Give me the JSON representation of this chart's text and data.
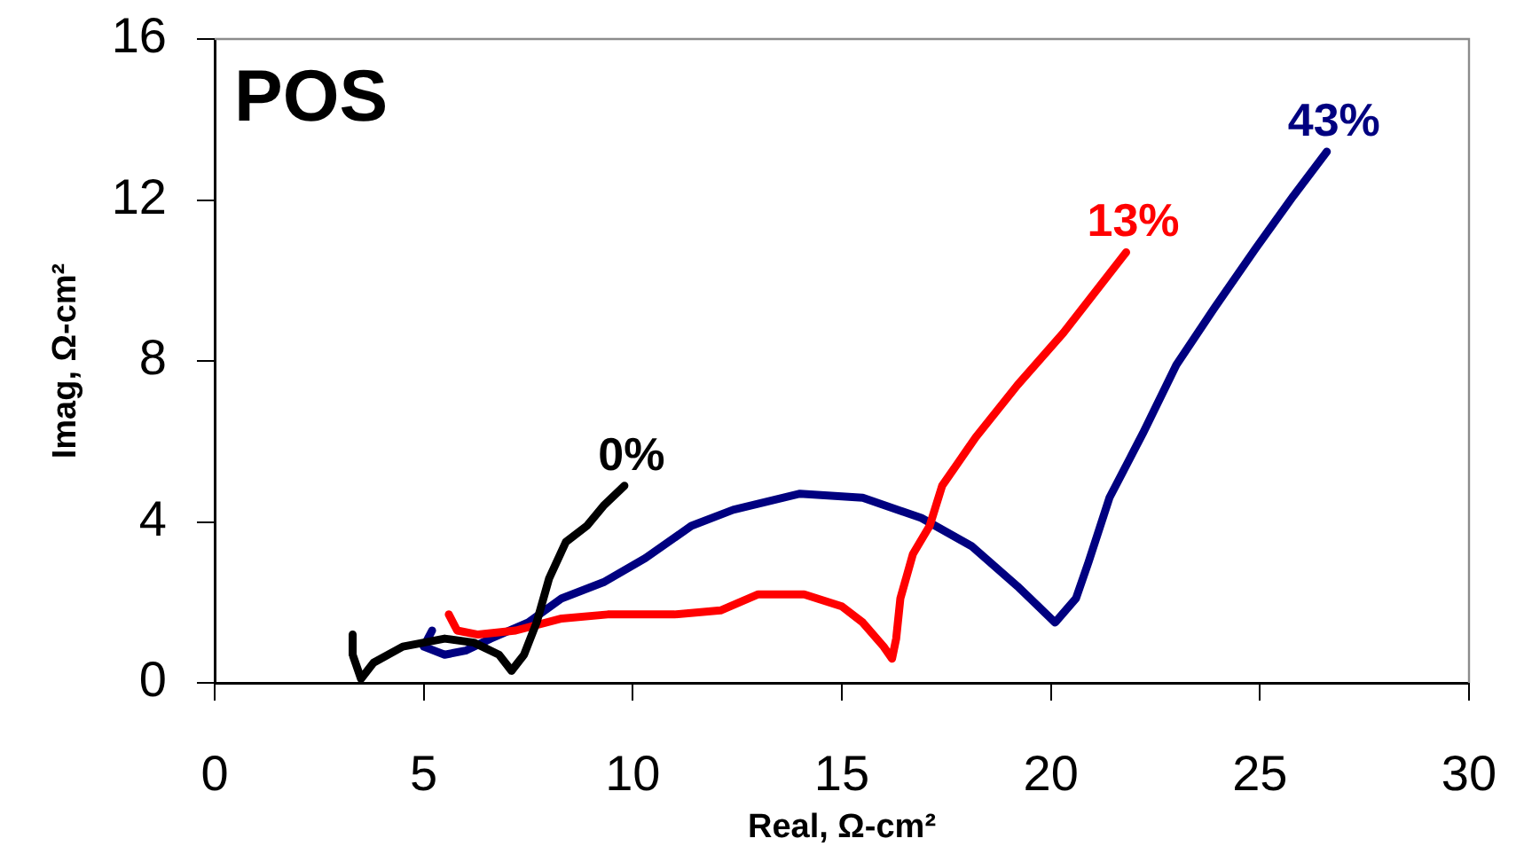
{
  "chart_data": {
    "type": "line",
    "title": "POS",
    "xlabel": "Real, Ω-cm²",
    "ylabel": "Imag, Ω-cm²",
    "xlim": [
      0,
      30
    ],
    "xticks": [
      0,
      5,
      10,
      15,
      20,
      25,
      30
    ],
    "ylim": [
      0,
      16
    ],
    "yticks": [
      0,
      4,
      8,
      12,
      16
    ],
    "grid": false,
    "legend": false,
    "marker": "none",
    "line_style": "solid",
    "series": [
      {
        "name": "0%",
        "color": "#000000",
        "x": [
          3.3,
          3.3,
          3.5,
          3.8,
          4.5,
          5.5,
          6.2,
          6.8,
          7.1,
          7.4,
          7.7,
          8.0,
          8.4,
          8.9,
          9.3,
          9.8
        ],
        "values": [
          1.2,
          0.7,
          0.1,
          0.5,
          0.9,
          1.1,
          1.0,
          0.7,
          0.3,
          0.7,
          1.5,
          2.6,
          3.5,
          3.9,
          4.4,
          4.9
        ]
      },
      {
        "name": "13%",
        "color": "#ff0000",
        "x": [
          5.6,
          5.8,
          6.3,
          7.2,
          8.3,
          9.4,
          11.0,
          12.1,
          13.0,
          14.1,
          15.0,
          15.5,
          16.0,
          16.2,
          16.3,
          16.4,
          16.7,
          17.1,
          17.4,
          17.8,
          18.2,
          19.2,
          20.3,
          21.8
        ],
        "values": [
          1.7,
          1.3,
          1.2,
          1.3,
          1.6,
          1.7,
          1.7,
          1.8,
          2.2,
          2.2,
          1.9,
          1.5,
          0.9,
          0.6,
          1.1,
          2.1,
          3.2,
          3.9,
          4.9,
          5.5,
          6.1,
          7.4,
          8.7,
          10.7
        ]
      },
      {
        "name": "43%",
        "color": "#000080",
        "x": [
          5.2,
          5.0,
          5.5,
          6.0,
          6.6,
          7.5,
          8.3,
          9.3,
          10.3,
          11.4,
          12.4,
          14.0,
          15.5,
          16.9,
          18.1,
          19.2,
          20.1,
          20.6,
          20.9,
          21.4,
          22.2,
          23.0,
          23.9,
          24.9,
          25.8,
          26.6
        ],
        "values": [
          1.3,
          0.9,
          0.7,
          0.8,
          1.1,
          1.5,
          2.1,
          2.5,
          3.1,
          3.9,
          4.3,
          4.7,
          4.6,
          4.1,
          3.4,
          2.4,
          1.5,
          2.1,
          3.0,
          4.6,
          6.2,
          7.9,
          9.3,
          10.8,
          12.1,
          13.2
        ]
      }
    ]
  }
}
